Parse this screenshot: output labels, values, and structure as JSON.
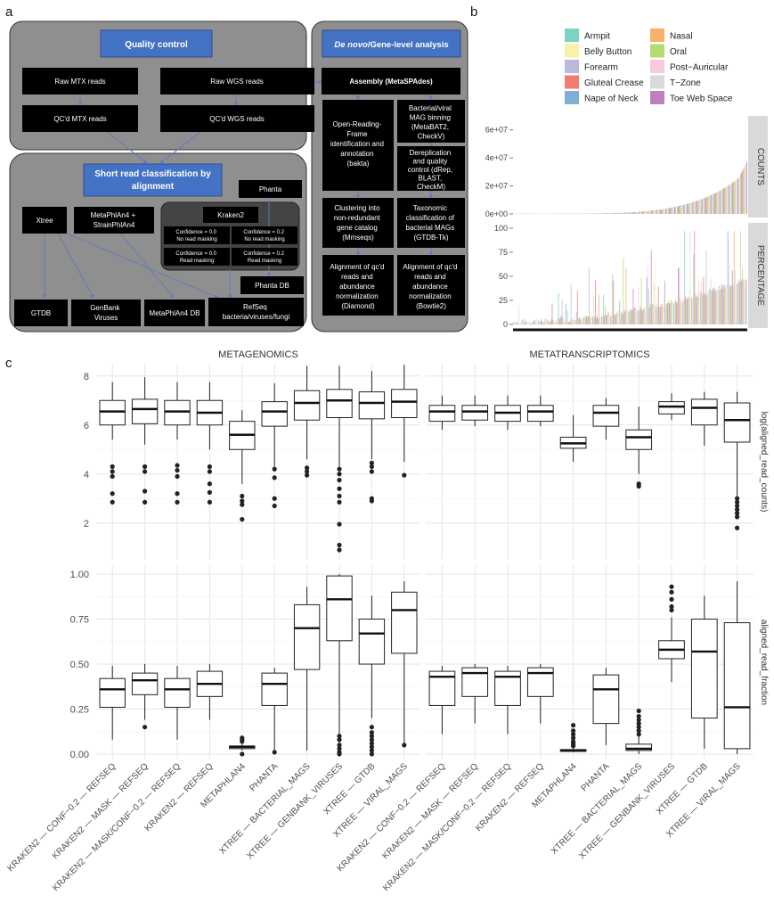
{
  "panel_labels": {
    "a": "a",
    "b": "b",
    "c": "c"
  },
  "diagram_a": {
    "groups": {
      "qc": "Quality control",
      "denovo_italic": "De novo",
      "denovo_rest": "/Gene-level analysis",
      "short_read_line1": "Short read classification by",
      "short_read_line2": "alignment"
    },
    "nodes": {
      "raw_mtx": "Raw MTX reads",
      "raw_wgs": "Raw WGS reads",
      "qc_mtx": "QC'd MTX reads",
      "qc_wgs": "QC'd WGS reads",
      "assembly": "Assembly (MetaSPAdes)",
      "orf": [
        "Open-Reading-",
        "Frame",
        "identification and",
        "annotation",
        "(bakta)"
      ],
      "binning": [
        "Bacterial/viral",
        "MAG binning",
        "(MetaBAT2,",
        "CheckV)"
      ],
      "derep": [
        "Dereplication",
        "and quality",
        "control (dRep,",
        "BLAST,",
        "CheckM)"
      ],
      "cluster": [
        "Clustering into",
        "non-redundant",
        "gene catalog",
        "(Mmseqs)"
      ],
      "taxo": [
        "Taxonomic",
        "classification of",
        "bacterial MAGs",
        "(GTDB-Tk)"
      ],
      "align_diamond": [
        "Alignment of qc'd",
        "reads and",
        "abundance",
        "normalization",
        "(Diamond)"
      ],
      "align_bowtie": [
        "Alignment of qc'd",
        "reads and",
        "abundance",
        "normalization",
        "(Bowtie2)"
      ],
      "phanta": "Phanta",
      "xtree": "Xtree",
      "metaphlan": [
        "MetaPhlAn4 +",
        "StrainPhlAn4"
      ],
      "kraken2": "Kraken2",
      "conf00_nomask": [
        "Confidence = 0.0",
        "No read masking"
      ],
      "conf02_nomask": [
        "Confidence = 0.2",
        "No read masking"
      ],
      "conf00_mask": [
        "Confidence = 0.0",
        "Read masking"
      ],
      "conf02_mask": [
        "Confidence = 0.2",
        "Read masking"
      ],
      "phanta_db": "Phanta DB",
      "gtdb": "GTDB",
      "genbank": [
        "GenBank",
        "Viruses"
      ],
      "metaphlan_db": "MetaPhlAn4 DB",
      "refseq": [
        "RefSeq",
        "bacteria/viruses/fungi"
      ]
    }
  },
  "legend_b": {
    "items": [
      {
        "label": "Armpit",
        "color": "#7fd1c3"
      },
      {
        "label": "Belly Button",
        "color": "#f7f2a6"
      },
      {
        "label": "Forearm",
        "color": "#bdb9dc"
      },
      {
        "label": "Gluteal Crease",
        "color": "#f07d72"
      },
      {
        "label": "Nape of Neck",
        "color": "#7fb0d4"
      },
      {
        "label": "Nasal",
        "color": "#f7b267"
      },
      {
        "label": "Oral",
        "color": "#b3dc6e"
      },
      {
        "label": "Post−Auricular",
        "color": "#f7c9df"
      },
      {
        "label": "T−Zone",
        "color": "#d9d9d9"
      },
      {
        "label": "Toe Web Space",
        "color": "#bc80bd"
      }
    ]
  },
  "chart_data": [
    {
      "type": "bar",
      "panel": "b",
      "facets": [
        "COUNTS",
        "PERCENTAGE"
      ],
      "counts_ticks": [
        "0e+00",
        "2e+07",
        "4e+07",
        "6e+07"
      ],
      "percentage_ticks": [
        "0",
        "25",
        "50",
        "75",
        "100"
      ],
      "note": "stacked bars per sample, sorted ascending"
    },
    {
      "type": "box",
      "panel": "c",
      "columns": [
        "METAGENOMICS",
        "METATRANSCRIPTOMICS"
      ],
      "rows": [
        "log(aligned_read_counts)",
        "aligned_read_fraction"
      ],
      "categories_metagenomics": [
        "KRAKEN2 — CONF−0.2 — REFSEQ",
        "KRAKEN2 — MASK — REFSEQ",
        "KRAKEN2 — MASK/CONF−0.2 — REFSEQ",
        "KRAKEN2 — REFSEQ",
        "METAPHLAN4",
        "PHANTA",
        "XTREE — BACTERIAL_MAGS",
        "XTREE — GENBANK_VIRUSES",
        "XTREE — GTDB",
        "XTREE — VIRAL_MAGS"
      ],
      "categories_metatranscriptomics": [
        "KRAKEN2 — CONF−0.2 — REFSEQ",
        "KRAKEN2 — MASK — REFSEQ",
        "KRAKEN2 — MASK/CONF−0.2 — REFSEQ",
        "KRAKEN2 — REFSEQ",
        "METAPHLAN4",
        "PHANTA",
        "XTREE — BACTERIAL_MAGS",
        "XTREE — GENBANK_VIRUSES",
        "XTREE — GTDB",
        "XTREE — VIRAL_MAGS"
      ],
      "log_ticks": [
        "2",
        "4",
        "6",
        "8"
      ],
      "log_ylim": [
        0.5,
        8.5
      ],
      "frac_ticks": [
        "0.00",
        "0.25",
        "0.50",
        "0.75",
        "1.00"
      ],
      "frac_ylim": [
        -0.03,
        1.05
      ],
      "log_counts": {
        "metagenomics": [
          {
            "lw": 5.4,
            "q1": 6.0,
            "med": 6.55,
            "q3": 7.0,
            "uw": 7.75,
            "out": [
              4.3,
              4.1,
              3.9,
              3.2,
              2.85
            ]
          },
          {
            "lw": 5.2,
            "q1": 6.05,
            "med": 6.65,
            "q3": 7.05,
            "uw": 7.95,
            "out": [
              4.3,
              4.1,
              3.3,
              2.85
            ]
          },
          {
            "lw": 5.4,
            "q1": 6.0,
            "med": 6.55,
            "q3": 7.0,
            "uw": 7.75,
            "out": [
              4.35,
              4.15,
              3.9,
              3.2,
              2.85
            ]
          },
          {
            "lw": 5.0,
            "q1": 6.0,
            "med": 6.5,
            "q3": 7.0,
            "uw": 7.75,
            "out": [
              4.3,
              4.1,
              3.6,
              3.25,
              2.85
            ]
          },
          {
            "lw": 3.6,
            "q1": 5.0,
            "med": 5.6,
            "q3": 6.15,
            "uw": 6.6,
            "out": [
              3.1,
              2.9,
              2.75,
              2.15
            ]
          },
          {
            "lw": 4.3,
            "q1": 5.95,
            "med": 6.55,
            "q3": 6.95,
            "uw": 7.7,
            "out": [
              4.2,
              3.85,
              3.0,
              2.7
            ]
          },
          {
            "lw": 4.6,
            "q1": 6.2,
            "med": 6.9,
            "q3": 7.4,
            "uw": 8.4,
            "out": [
              4.25,
              4.1,
              3.95
            ]
          },
          {
            "lw": 4.3,
            "q1": 6.3,
            "med": 7.0,
            "q3": 7.45,
            "uw": 8.4,
            "out": [
              4.2,
              4.0,
              3.75,
              3.4,
              3.1,
              2.85,
              1.95,
              1.1,
              0.9
            ]
          },
          {
            "lw": 4.6,
            "q1": 6.25,
            "med": 6.9,
            "q3": 7.35,
            "uw": 8.2,
            "out": [
              4.45,
              4.3,
              4.1,
              3.0,
              2.9
            ]
          },
          {
            "lw": 4.5,
            "q1": 6.3,
            "med": 6.95,
            "q3": 7.45,
            "uw": 8.45,
            "out": [
              3.95
            ]
          }
        ],
        "metatranscriptomics": [
          {
            "lw": 5.8,
            "q1": 6.15,
            "med": 6.55,
            "q3": 6.8,
            "uw": 7.2,
            "out": []
          },
          {
            "lw": 5.95,
            "q1": 6.2,
            "med": 6.55,
            "q3": 6.8,
            "uw": 7.2,
            "out": []
          },
          {
            "lw": 5.8,
            "q1": 6.15,
            "med": 6.5,
            "q3": 6.8,
            "uw": 7.2,
            "out": []
          },
          {
            "lw": 5.95,
            "q1": 6.15,
            "med": 6.55,
            "q3": 6.8,
            "uw": 7.2,
            "out": []
          },
          {
            "lw": 4.5,
            "q1": 5.05,
            "med": 5.25,
            "q3": 5.5,
            "uw": 6.4,
            "out": []
          },
          {
            "lw": 5.4,
            "q1": 5.95,
            "med": 6.5,
            "q3": 6.8,
            "uw": 7.1,
            "out": []
          },
          {
            "lw": 4.0,
            "q1": 5.0,
            "med": 5.5,
            "q3": 5.8,
            "uw": 6.75,
            "out": [
              3.6,
              3.5
            ]
          },
          {
            "lw": 6.2,
            "q1": 6.45,
            "med": 6.75,
            "q3": 6.95,
            "uw": 7.3,
            "out": []
          },
          {
            "lw": 5.15,
            "q1": 6.0,
            "med": 6.7,
            "q3": 7.05,
            "uw": 7.35,
            "out": []
          },
          {
            "lw": 3.1,
            "q1": 5.3,
            "med": 6.2,
            "q3": 6.9,
            "uw": 7.35,
            "out": [
              3.0,
              2.85,
              2.7,
              2.55,
              2.4,
              2.25,
              1.8
            ]
          }
        ]
      },
      "fractions": {
        "metagenomics": [
          {
            "lw": 0.08,
            "q1": 0.26,
            "med": 0.36,
            "q3": 0.42,
            "uw": 0.49,
            "out": []
          },
          {
            "lw": 0.19,
            "q1": 0.33,
            "med": 0.41,
            "q3": 0.45,
            "uw": 0.5,
            "out": [
              0.15
            ]
          },
          {
            "lw": 0.08,
            "q1": 0.26,
            "med": 0.36,
            "q3": 0.42,
            "uw": 0.49,
            "out": []
          },
          {
            "lw": 0.19,
            "q1": 0.32,
            "med": 0.39,
            "q3": 0.46,
            "uw": 0.5,
            "out": []
          },
          {
            "lw": 0.02,
            "q1": 0.03,
            "med": 0.04,
            "q3": 0.045,
            "uw": 0.06,
            "out": [
              0.09,
              0.08,
              0.07,
              0.0
            ]
          },
          {
            "lw": 0.02,
            "q1": 0.27,
            "med": 0.39,
            "q3": 0.45,
            "uw": 0.48,
            "out": [
              0.01
            ]
          },
          {
            "lw": 0.02,
            "q1": 0.47,
            "med": 0.7,
            "q3": 0.83,
            "uw": 0.93,
            "out": []
          },
          {
            "lw": 0.02,
            "q1": 0.63,
            "med": 0.86,
            "q3": 0.99,
            "uw": 1.0,
            "out": [
              0.1,
              0.08,
              0.05,
              0.03,
              0.01,
              0.0
            ]
          },
          {
            "lw": 0.2,
            "q1": 0.5,
            "med": 0.67,
            "q3": 0.75,
            "uw": 0.88,
            "out": [
              0.15,
              0.12,
              0.1,
              0.08,
              0.06,
              0.04,
              0.02,
              0.0
            ]
          },
          {
            "lw": 0.06,
            "q1": 0.56,
            "med": 0.8,
            "q3": 0.9,
            "uw": 0.96,
            "out": [
              0.05
            ]
          }
        ],
        "metatranscriptomics": [
          {
            "lw": 0.11,
            "q1": 0.27,
            "med": 0.43,
            "q3": 0.46,
            "uw": 0.49,
            "out": []
          },
          {
            "lw": 0.17,
            "q1": 0.32,
            "med": 0.45,
            "q3": 0.48,
            "uw": 0.5,
            "out": []
          },
          {
            "lw": 0.11,
            "q1": 0.27,
            "med": 0.43,
            "q3": 0.46,
            "uw": 0.49,
            "out": []
          },
          {
            "lw": 0.17,
            "q1": 0.32,
            "med": 0.45,
            "q3": 0.48,
            "uw": 0.5,
            "out": []
          },
          {
            "lw": 0.01,
            "q1": 0.015,
            "med": 0.02,
            "q3": 0.025,
            "uw": 0.04,
            "out": [
              0.16,
              0.13,
              0.11,
              0.09,
              0.07,
              0.06,
              0.05,
              0.045
            ]
          },
          {
            "lw": 0.05,
            "q1": 0.17,
            "med": 0.36,
            "q3": 0.44,
            "uw": 0.48,
            "out": []
          },
          {
            "lw": 0.0,
            "q1": 0.02,
            "med": 0.03,
            "q3": 0.055,
            "uw": 0.1,
            "out": [
              0.24,
              0.21,
              0.19,
              0.17,
              0.15,
              0.13,
              0.11
            ]
          },
          {
            "lw": 0.4,
            "q1": 0.53,
            "med": 0.58,
            "q3": 0.63,
            "uw": 0.76,
            "out": [
              0.93,
              0.9,
              0.86,
              0.82,
              0.8
            ]
          },
          {
            "lw": 0.03,
            "q1": 0.2,
            "med": 0.57,
            "q3": 0.75,
            "uw": 0.88,
            "out": []
          },
          {
            "lw": 0.0,
            "q1": 0.03,
            "med": 0.26,
            "q3": 0.73,
            "uw": 0.96,
            "out": []
          }
        ]
      }
    }
  ]
}
